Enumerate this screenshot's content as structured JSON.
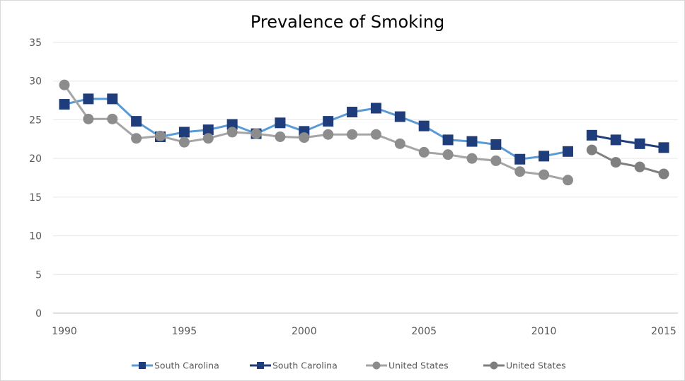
{
  "chart_data": {
    "type": "line",
    "title": "Prevalence of Smoking",
    "xlabel": "",
    "ylabel": "",
    "xlim": [
      1990,
      2015
    ],
    "ylim": [
      0,
      35
    ],
    "x_ticks": [
      1990,
      1995,
      2000,
      2005,
      2010,
      2015
    ],
    "y_ticks": [
      0,
      5,
      10,
      15,
      20,
      25,
      30,
      35
    ],
    "grid": "horizontal",
    "legend_position": "bottom",
    "series": [
      {
        "name": "South Carolina",
        "color": "#5b9bd5",
        "marker": "square",
        "x": [
          1990,
          1991,
          1992,
          1993,
          1994,
          1995,
          1996,
          1997,
          1998,
          1999,
          2000,
          2001,
          2002,
          2003,
          2004,
          2005,
          2006,
          2007,
          2008,
          2009,
          2010,
          2011
        ],
        "values": [
          27.0,
          27.7,
          27.7,
          24.8,
          22.8,
          23.4,
          23.7,
          24.4,
          23.2,
          24.6,
          23.5,
          24.8,
          26.0,
          26.5,
          25.4,
          24.2,
          22.4,
          22.2,
          21.8,
          19.9,
          20.3,
          20.9
        ]
      },
      {
        "name": "South Carolina",
        "color": "#1f3d7a",
        "marker": "square",
        "x": [
          2012,
          2013,
          2014,
          2015
        ],
        "values": [
          23.0,
          22.4,
          21.9,
          21.4
        ]
      },
      {
        "name": "United States",
        "color": "#a5a5a5",
        "marker": "circle",
        "x": [
          1990,
          1991,
          1992,
          1993,
          1994,
          1995,
          1996,
          1997,
          1998,
          1999,
          2000,
          2001,
          2002,
          2003,
          2004,
          2005,
          2006,
          2007,
          2008,
          2009,
          2010,
          2011
        ],
        "values": [
          29.5,
          25.1,
          25.1,
          22.6,
          22.9,
          22.1,
          22.6,
          23.4,
          23.2,
          22.8,
          22.7,
          23.1,
          23.1,
          23.1,
          21.9,
          20.8,
          20.5,
          20.0,
          19.7,
          18.3,
          17.9,
          17.2
        ]
      },
      {
        "name": "United States",
        "color": "#7f7f7f",
        "marker": "circle",
        "x": [
          2012,
          2013,
          2014,
          2015
        ],
        "values": [
          21.1,
          19.5,
          18.9,
          18.0
        ]
      }
    ]
  }
}
